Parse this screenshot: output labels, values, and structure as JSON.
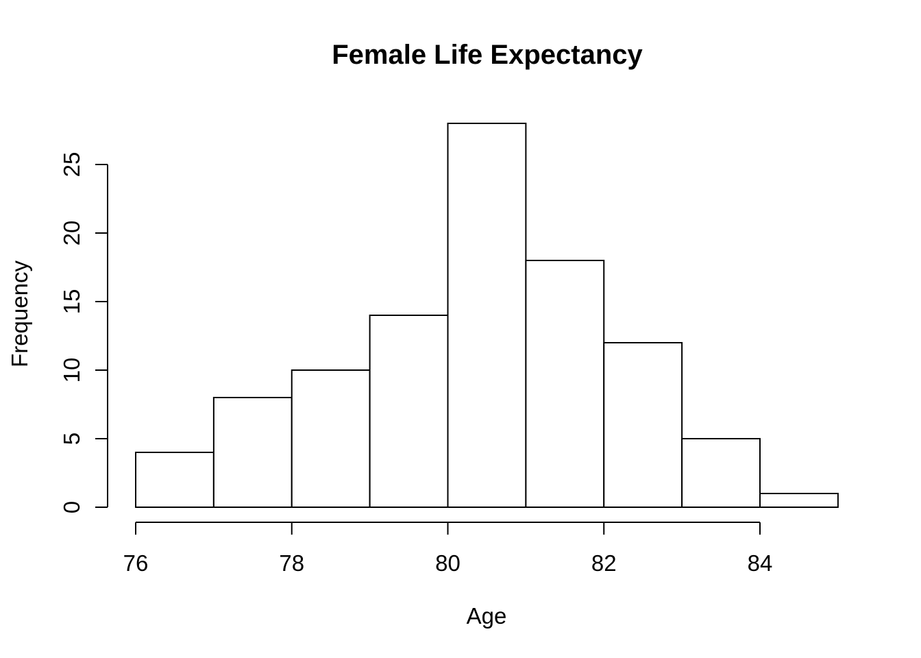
{
  "chart_data": {
    "type": "bar",
    "subtype": "histogram",
    "title": "Female Life Expectancy",
    "xlabel": "Age",
    "ylabel": "Frequency",
    "bin_edges": [
      76,
      77,
      78,
      79,
      80,
      81,
      82,
      83,
      84,
      85
    ],
    "counts": [
      4,
      8,
      10,
      14,
      28,
      18,
      12,
      5,
      1
    ],
    "x_ticks": [
      76,
      78,
      80,
      82,
      84
    ],
    "y_ticks": [
      0,
      5,
      10,
      15,
      20,
      25
    ],
    "xlim": [
      76,
      85
    ],
    "ylim": [
      0,
      28
    ],
    "grid": "off",
    "legend": "none",
    "bar_fill": "#ffffff",
    "line_color": "#000000",
    "background": "#ffffff"
  }
}
